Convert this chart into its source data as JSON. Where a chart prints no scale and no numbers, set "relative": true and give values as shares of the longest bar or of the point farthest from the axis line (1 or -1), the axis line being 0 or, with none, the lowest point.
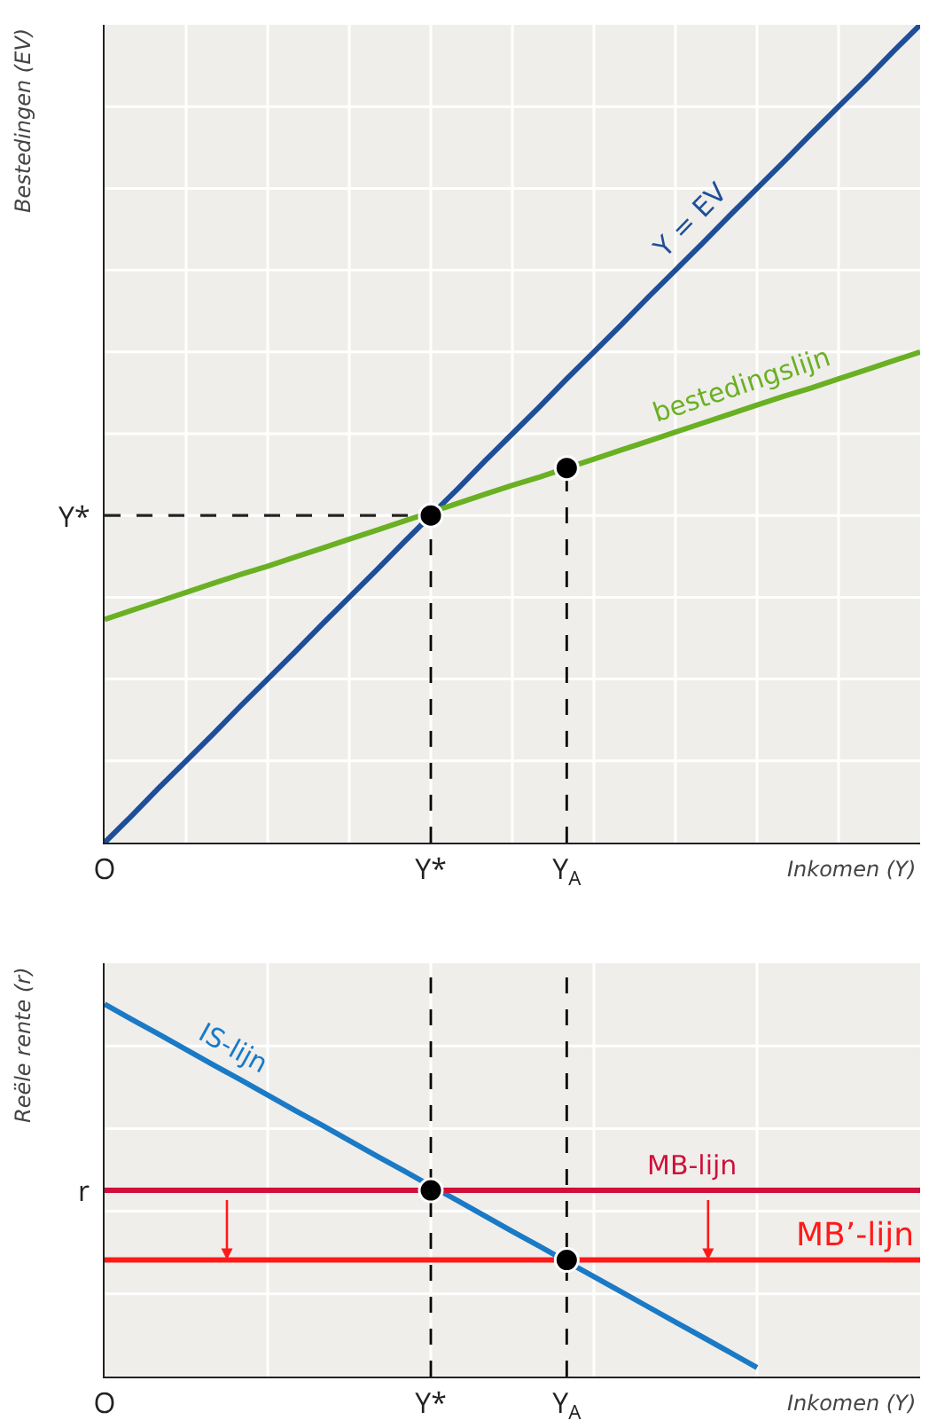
{
  "chart_data": [
    {
      "type": "line",
      "xlabel": "Inkomen (Y)",
      "ylabel": "Bestedingen (EV)",
      "relative": true,
      "grid": true,
      "legend": false,
      "categories": [
        "O",
        null,
        null,
        null,
        null,
        null,
        null,
        null,
        null,
        null,
        null,
        null,
        "Y*",
        null,
        null,
        null,
        null,
        "Y$_{A}$",
        null,
        null,
        null,
        null,
        null,
        null,
        null,
        null,
        null,
        null,
        null,
        null,
        null
      ],
      "series": [
        {
          "name": "Y = EV",
          "color": "#1f4e99",
          "values": [
            0,
            0.033,
            0.067,
            0.1,
            0.133,
            0.167,
            0.2,
            0.233,
            0.267,
            0.3,
            0.333,
            0.367,
            0.4,
            0.433,
            0.467,
            0.5,
            0.533,
            0.567,
            0.6,
            0.633,
            0.667,
            0.7,
            0.733,
            0.767,
            0.8,
            0.833,
            0.867,
            0.9,
            0.933,
            0.967,
            1
          ]
        },
        {
          "name": "bestedingslijn",
          "color": "#6ab023",
          "values": [
            0.273,
            0.284,
            0.295,
            0.306,
            0.317,
            0.328,
            0.338,
            0.349,
            0.36,
            0.371,
            0.382,
            0.393,
            0.404,
            0.415,
            0.426,
            0.437,
            0.447,
            0.458,
            0.469,
            0.48,
            0.491,
            0.502,
            0.513,
            0.524,
            0.535,
            0.546,
            0.556,
            0.567,
            0.578,
            0.589,
            0.6
          ]
        },
        {
          "color": "#222222",
          "line_style": "dashed",
          "values": [
            0.4,
            0.4,
            0.4,
            0.4,
            0.4,
            0.4,
            0.4,
            0.4,
            0.4,
            0.4,
            0.4,
            0.4,
            0.4,
            null,
            null,
            null,
            null,
            null,
            null,
            null,
            null,
            null,
            null,
            null,
            null,
            null,
            null,
            null,
            null,
            null,
            null
          ]
        },
        {
          "type": "scatter",
          "marker": "circle",
          "line_style": "dashed",
          "color": "#000000",
          "values": [
            null,
            null,
            null,
            null,
            null,
            null,
            null,
            null,
            null,
            null,
            null,
            null,
            0.4,
            null,
            null,
            null,
            null,
            0.458,
            null,
            null,
            null,
            null,
            null,
            null,
            null,
            null,
            null,
            null,
            null,
            null,
            null
          ]
        }
      ],
      "annotations": [
        "Y*"
      ]
    },
    {
      "type": "line",
      "xlabel": "Inkomen (Y)",
      "ylabel": "Reële rente (r)",
      "relative": true,
      "grid": true,
      "legend": false,
      "categories": [
        "O",
        null,
        null,
        null,
        null,
        null,
        null,
        null,
        null,
        null,
        null,
        null,
        "Y*",
        null,
        null,
        null,
        null,
        "Y$_{A}$",
        null,
        null,
        null,
        null,
        null,
        null,
        null,
        null,
        null,
        null,
        null,
        null,
        null
      ],
      "series": [
        {
          "name": "IS-lijn",
          "color": "#1a7ac6",
          "values": [
            1,
            0.959,
            0.919,
            0.878,
            0.837,
            0.797,
            0.756,
            0.715,
            0.675,
            0.634,
            0.593,
            0.553,
            0.512,
            0.472,
            0.431,
            0.39,
            0.35,
            0.309,
            0.268,
            0.228,
            0.187,
            0.146,
            0.106,
            0.065,
            0.024,
            null,
            null,
            null,
            null,
            null,
            null
          ]
        },
        {
          "name": "MB-lijn",
          "color": "#d0103a",
          "values": [
            0.5,
            0.5,
            0.5,
            0.5,
            0.5,
            0.5,
            0.5,
            0.5,
            0.5,
            0.5,
            0.5,
            0.5,
            0.5,
            0.5,
            0.5,
            0.5,
            0.5,
            0.5,
            0.5,
            0.5,
            0.5,
            0.5,
            0.5,
            0.5,
            0.5,
            0.5,
            0.5,
            0.5,
            0.5,
            0.5,
            0.5
          ]
        },
        {
          "name": "MB’-lijn",
          "color": "#ff1a1a",
          "values": [
            0.313,
            0.313,
            0.313,
            0.313,
            0.313,
            0.313,
            0.313,
            0.313,
            0.313,
            0.313,
            0.313,
            0.313,
            0.313,
            0.313,
            0.313,
            0.313,
            0.313,
            0.313,
            0.313,
            0.313,
            0.313,
            0.313,
            0.313,
            0.313,
            0.313,
            0.313,
            0.313,
            0.313,
            0.313,
            0.313,
            0.313
          ]
        },
        {
          "type": "scatter",
          "marker": "circle",
          "color": "#000000",
          "values": [
            null,
            null,
            null,
            null,
            null,
            null,
            null,
            null,
            null,
            null,
            null,
            null,
            0.5,
            null,
            null,
            null,
            null,
            0.313,
            null,
            null,
            null,
            null,
            null,
            null,
            null,
            null,
            null,
            null,
            null,
            null,
            null
          ]
        }
      ],
      "annotations": [
        "r"
      ]
    }
  ]
}
